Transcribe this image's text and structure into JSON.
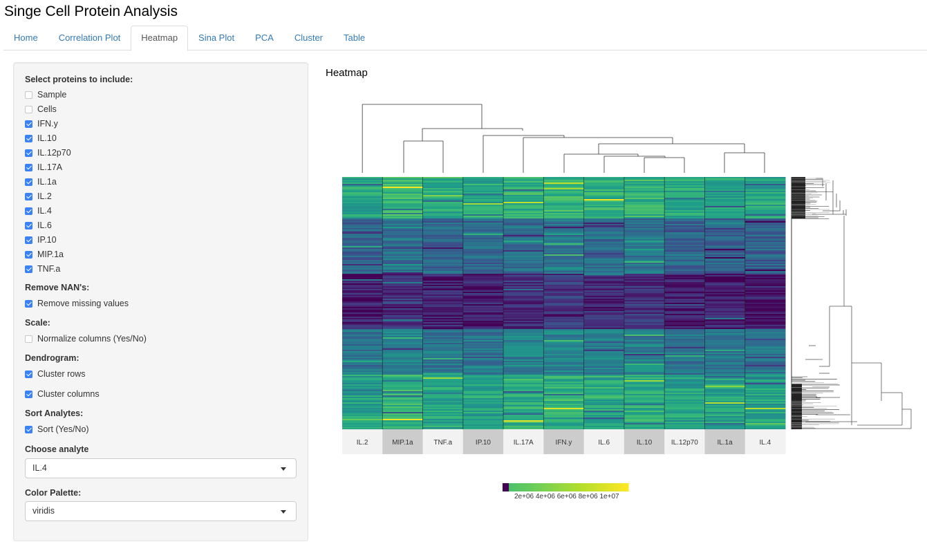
{
  "app": {
    "title": "Singe Cell Protein Analysis"
  },
  "tabs": [
    {
      "label": "Home",
      "active": false
    },
    {
      "label": "Correlation Plot",
      "active": false
    },
    {
      "label": "Heatmap",
      "active": true
    },
    {
      "label": "Sina Plot",
      "active": false
    },
    {
      "label": "PCA",
      "active": false
    },
    {
      "label": "Cluster",
      "active": false
    },
    {
      "label": "Table",
      "active": false
    }
  ],
  "sidebar": {
    "proteins_label": "Select proteins to include:",
    "proteins": [
      {
        "label": "Sample",
        "checked": false
      },
      {
        "label": "Cells",
        "checked": false
      },
      {
        "label": "IFN.y",
        "checked": true
      },
      {
        "label": "IL.10",
        "checked": true
      },
      {
        "label": "IL.12p70",
        "checked": true
      },
      {
        "label": "IL.17A",
        "checked": true
      },
      {
        "label": "IL.1a",
        "checked": true
      },
      {
        "label": "IL.2",
        "checked": true
      },
      {
        "label": "IL.4",
        "checked": true
      },
      {
        "label": "IL.6",
        "checked": true
      },
      {
        "label": "IP.10",
        "checked": true
      },
      {
        "label": "MIP.1a",
        "checked": true
      },
      {
        "label": "TNF.a",
        "checked": true
      }
    ],
    "nan_label": "Remove NAN's:",
    "nan_option": {
      "label": "Remove missing values",
      "checked": true
    },
    "scale_label": "Scale:",
    "scale_option": {
      "label": "Normalize columns (Yes/No)",
      "checked": false
    },
    "dendrogram_label": "Dendrogram:",
    "dendrogram_rows": {
      "label": "Cluster rows",
      "checked": true
    },
    "dendrogram_cols": {
      "label": "Cluster columns",
      "checked": true
    },
    "sort_label": "Sort Analytes:",
    "sort_option": {
      "label": "Sort (Yes/No)",
      "checked": true
    },
    "analyte_label": "Choose analyte",
    "analyte_value": "IL.4",
    "palette_label": "Color Palette:",
    "palette_value": "viridis"
  },
  "main": {
    "title": "Heatmap"
  },
  "chart_data": {
    "type": "heatmap",
    "title": "Heatmap",
    "palette": "viridis",
    "columns": [
      "IL.2",
      "MIP.1a",
      "TNF.a",
      "IP.10",
      "IL.17A",
      "IFN.y",
      "IL.6",
      "IL.10",
      "IL.12p70",
      "IL.1a",
      "IL.4"
    ],
    "column_label_shaded": [
      false,
      true,
      false,
      true,
      false,
      true,
      false,
      true,
      false,
      true,
      false
    ],
    "row_bands": [
      {
        "name": "top-high",
        "fraction": 0.16,
        "level": 0.62
      },
      {
        "name": "mid-teal",
        "fraction": 0.22,
        "level": 0.35
      },
      {
        "name": "low-purple",
        "fraction": 0.22,
        "level": 0.12
      },
      {
        "name": "mid-mixed",
        "fraction": 0.18,
        "level": 0.42
      },
      {
        "name": "bottom-high",
        "fraction": 0.22,
        "level": 0.6
      }
    ],
    "column_dendrogram_merges": [
      [
        7,
        8,
        0.12
      ],
      [
        6,
        12,
        0.16
      ],
      [
        9,
        10,
        0.18
      ],
      [
        14,
        13,
        0.45
      ],
      [
        4,
        15,
        0.55
      ],
      [
        1,
        2,
        0.55
      ],
      [
        3,
        16,
        0.6
      ],
      [
        17,
        18,
        0.7
      ],
      [
        5,
        19,
        0.8
      ],
      [
        11,
        20,
        1.0
      ]
    ],
    "colorbar": {
      "ticks": [
        "2e+06",
        "4e+06",
        "6e+06",
        "8e+06",
        "1e+07"
      ],
      "range": [
        0,
        11000000
      ]
    }
  }
}
